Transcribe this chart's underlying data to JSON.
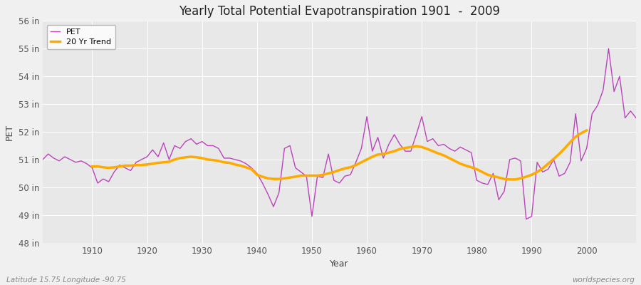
{
  "title": "Yearly Total Potential Evapotranspiration 1901  -  2009",
  "xlabel": "Year",
  "ylabel": "PET",
  "bottom_left_label": "Latitude 15.75 Longitude -90.75",
  "bottom_right_label": "worldspecies.org",
  "legend_pet": "PET",
  "legend_trend": "20 Yr Trend",
  "pet_color": "#bb44bb",
  "trend_color": "#ffaa00",
  "background_color": "#f0f0f0",
  "plot_bg_color": "#e8e8e8",
  "grid_color": "#ffffff",
  "ylim_min": 48,
  "ylim_max": 56,
  "yticks": [
    48,
    49,
    50,
    51,
    52,
    53,
    54,
    55,
    56
  ],
  "xlim_min": 1901,
  "xlim_max": 2009,
  "years": [
    1901,
    1902,
    1903,
    1904,
    1905,
    1906,
    1907,
    1908,
    1909,
    1910,
    1911,
    1912,
    1913,
    1914,
    1915,
    1916,
    1917,
    1918,
    1919,
    1920,
    1921,
    1922,
    1923,
    1924,
    1925,
    1926,
    1927,
    1928,
    1929,
    1930,
    1931,
    1932,
    1933,
    1934,
    1935,
    1936,
    1937,
    1938,
    1939,
    1940,
    1941,
    1942,
    1943,
    1944,
    1945,
    1946,
    1947,
    1948,
    1949,
    1950,
    1951,
    1952,
    1953,
    1954,
    1955,
    1956,
    1957,
    1958,
    1959,
    1960,
    1961,
    1962,
    1963,
    1964,
    1965,
    1966,
    1967,
    1968,
    1969,
    1970,
    1971,
    1972,
    1973,
    1974,
    1975,
    1976,
    1977,
    1978,
    1979,
    1980,
    1981,
    1982,
    1983,
    1984,
    1985,
    1986,
    1987,
    1988,
    1989,
    1990,
    1991,
    1992,
    1993,
    1994,
    1995,
    1996,
    1997,
    1998,
    1999,
    2000,
    2001,
    2002,
    2003,
    2004,
    2005,
    2006,
    2007,
    2008,
    2009
  ],
  "pet_values": [
    51.0,
    51.2,
    51.05,
    50.95,
    51.1,
    51.0,
    50.9,
    50.95,
    50.85,
    50.7,
    50.15,
    50.3,
    50.2,
    50.55,
    50.8,
    50.7,
    50.6,
    50.9,
    51.0,
    51.1,
    51.35,
    51.1,
    51.6,
    51.0,
    51.5,
    51.4,
    51.65,
    51.75,
    51.55,
    51.65,
    51.5,
    51.5,
    51.4,
    51.05,
    51.05,
    51.0,
    50.95,
    50.85,
    50.7,
    50.5,
    50.15,
    49.75,
    49.3,
    49.8,
    51.4,
    51.5,
    50.7,
    50.55,
    50.4,
    48.95,
    50.4,
    50.35,
    51.2,
    50.25,
    50.15,
    50.4,
    50.45,
    50.9,
    51.4,
    52.55,
    51.3,
    51.8,
    51.05,
    51.55,
    51.9,
    51.55,
    51.3,
    51.3,
    51.9,
    52.55,
    51.65,
    51.75,
    51.5,
    51.55,
    51.4,
    51.3,
    51.45,
    51.35,
    51.25,
    50.25,
    50.15,
    50.1,
    50.5,
    49.55,
    49.85,
    51.0,
    51.05,
    50.95,
    48.85,
    48.95,
    50.9,
    50.55,
    50.65,
    51.0,
    50.4,
    50.5,
    50.9,
    52.65,
    50.95,
    51.4,
    52.65,
    52.95,
    53.5,
    55.0,
    53.45,
    54.0,
    52.5,
    52.75,
    52.5
  ],
  "trend_values": [
    null,
    null,
    null,
    null,
    null,
    null,
    null,
    null,
    null,
    50.75,
    50.75,
    50.72,
    50.7,
    50.72,
    50.75,
    50.78,
    50.78,
    50.8,
    50.8,
    50.82,
    50.85,
    50.88,
    50.9,
    50.92,
    51.0,
    51.05,
    51.08,
    51.1,
    51.08,
    51.05,
    51.0,
    50.98,
    50.95,
    50.9,
    50.88,
    50.82,
    50.78,
    50.72,
    50.65,
    50.45,
    50.38,
    50.32,
    50.3,
    50.3,
    50.32,
    50.35,
    50.38,
    50.42,
    50.42,
    50.42,
    50.42,
    50.45,
    50.5,
    50.55,
    50.62,
    50.68,
    50.72,
    50.8,
    50.9,
    51.0,
    51.1,
    51.18,
    51.2,
    51.25,
    51.3,
    51.38,
    51.42,
    51.45,
    51.48,
    51.45,
    51.38,
    51.3,
    51.22,
    51.15,
    51.05,
    50.95,
    50.85,
    50.78,
    50.72,
    50.65,
    50.55,
    50.45,
    50.4,
    50.35,
    50.3,
    50.28,
    50.28,
    50.32,
    50.38,
    50.45,
    50.55,
    50.68,
    50.85,
    51.02,
    51.2,
    51.4,
    51.62,
    51.82,
    51.95,
    52.05,
    null,
    null,
    null,
    null,
    null,
    null,
    null,
    null,
    null
  ]
}
